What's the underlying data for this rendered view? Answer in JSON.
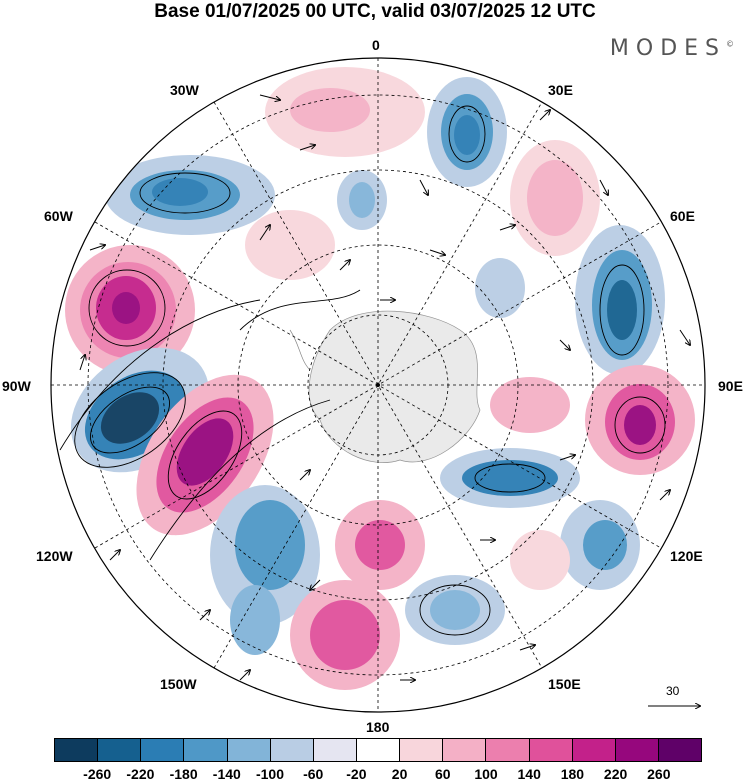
{
  "title": "Base 01/07/2025 00 UTC, valid 03/07/2025 12 UTC",
  "brand": "MODES",
  "brand_mark": "©",
  "longitude_labels": {
    "deg0": "0",
    "deg30e": "30E",
    "deg60e": "60E",
    "deg90e": "90E",
    "deg120e": "120E",
    "deg150e": "150E",
    "deg180": "180",
    "deg150w": "150W",
    "deg120w": "120W",
    "deg90w": "90W",
    "deg60w": "60W",
    "deg30w": "30W"
  },
  "reference_vector_label": "30",
  "colorbar": {
    "tick_labels": [
      "-260",
      "-220",
      "-180",
      "-140",
      "-100",
      "-60",
      "-20",
      "20",
      "60",
      "100",
      "140",
      "180",
      "220",
      "260"
    ],
    "colors": [
      "#0d3b5e",
      "#15608f",
      "#2b7db4",
      "#4f98c7",
      "#82b4d8",
      "#b9cde4",
      "#e5e5f1",
      "#ffffff",
      "#f8d6dc",
      "#f4b0c6",
      "#ec7fae",
      "#e0519b",
      "#c3218a",
      "#96077d",
      "#5f0168"
    ]
  },
  "map_features": {
    "projection": "south polar stereographic",
    "field": "shaded anomaly with streamlines/vectors",
    "center": "Antarctica"
  }
}
